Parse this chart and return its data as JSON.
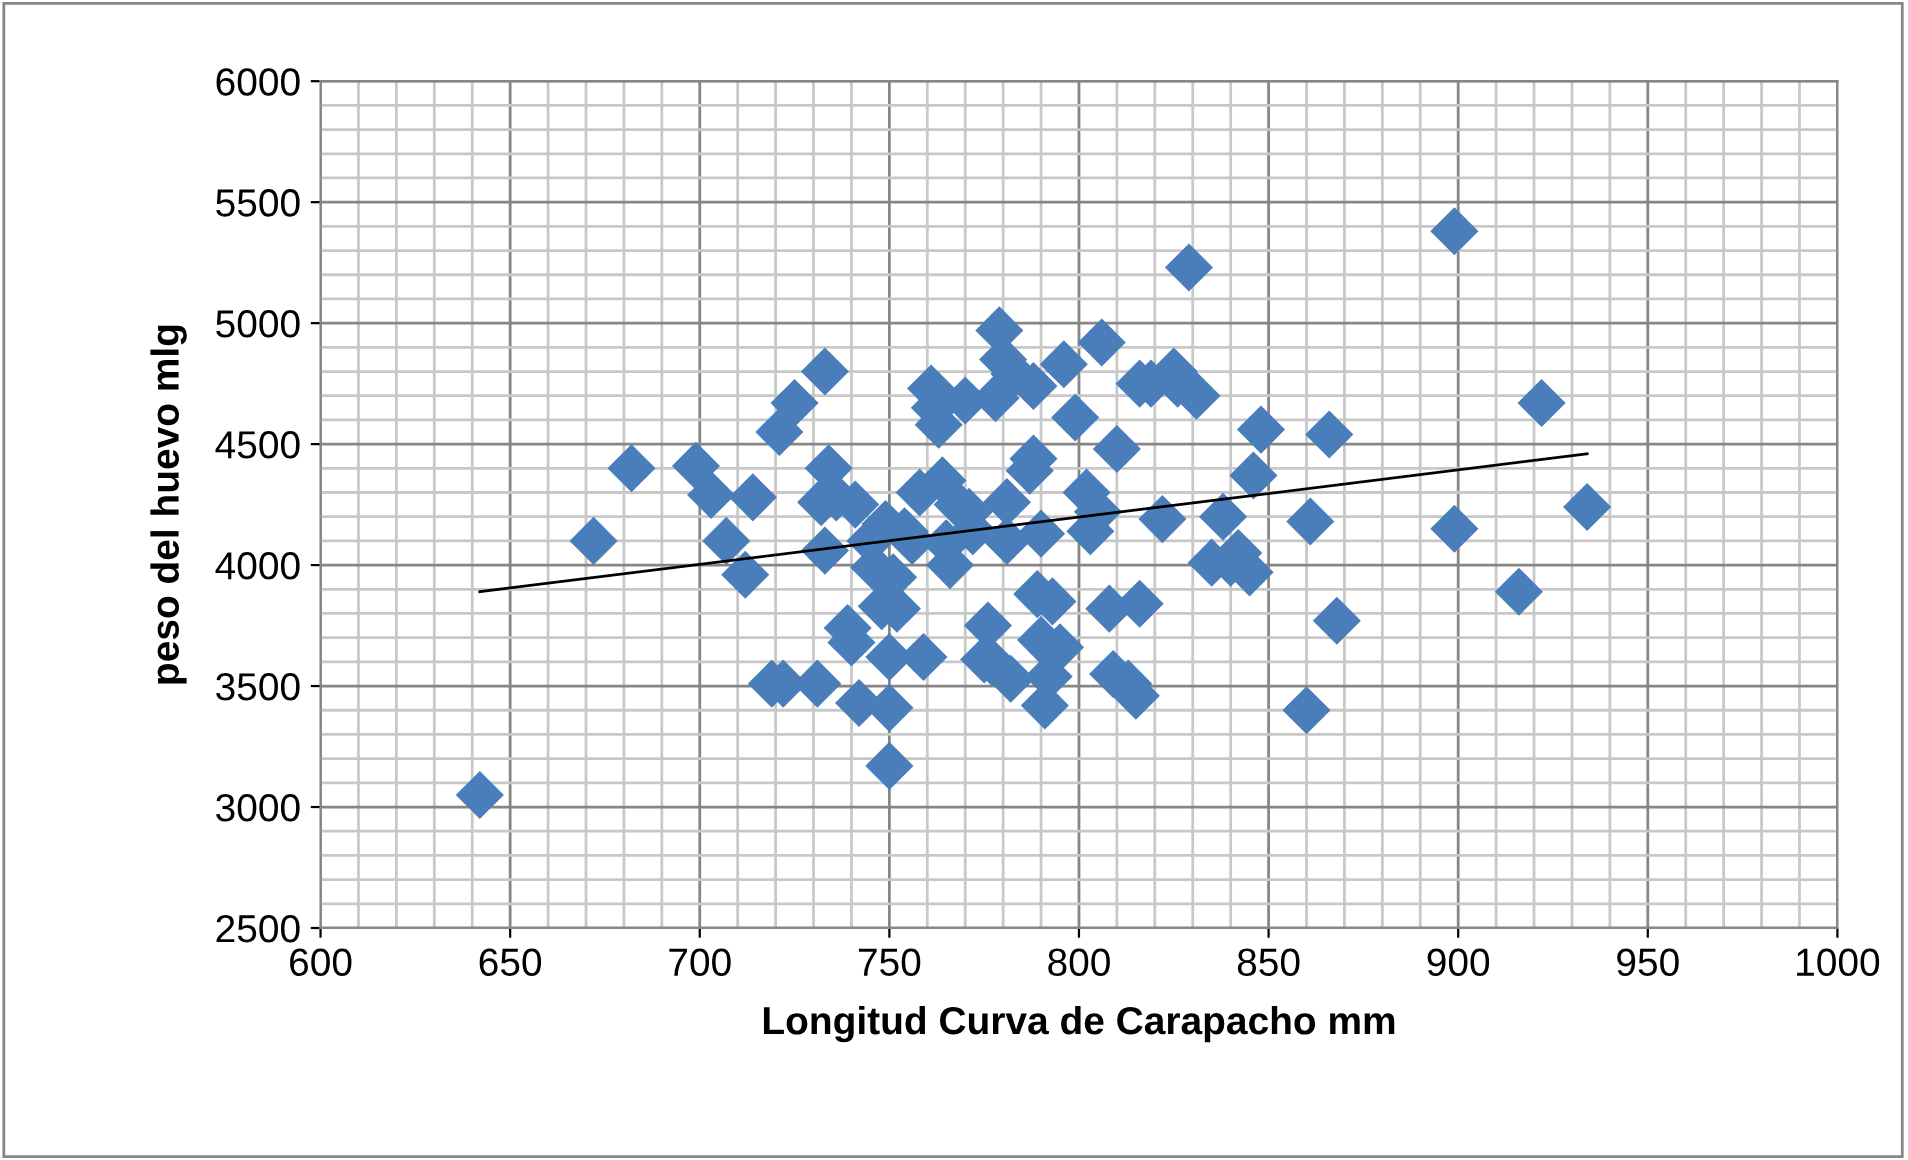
{
  "chart_data": {
    "type": "scatter",
    "xlabel": "Longitud Curva de Carapacho mm",
    "ylabel": "peso del huevo mlg",
    "xlim": [
      600,
      1000
    ],
    "ylim": [
      2500,
      6000
    ],
    "xticks": [
      600,
      650,
      700,
      750,
      800,
      850,
      900,
      950,
      1000
    ],
    "yticks": [
      2500,
      3000,
      3500,
      4000,
      4500,
      5000,
      5500,
      6000
    ],
    "grid": true,
    "marker": "diamond",
    "series": [
      {
        "color": "#4a7ebb",
        "x": [
          642,
          672,
          682,
          699,
          703,
          707,
          712,
          714,
          719,
          721,
          722,
          725,
          731,
          733,
          732,
          733,
          734,
          736,
          739,
          740,
          741,
          742,
          745,
          746,
          748,
          749,
          750,
          750,
          750,
          751,
          752,
          754,
          756,
          758,
          759,
          761,
          762,
          763,
          764,
          765,
          766,
          768,
          770,
          771,
          772,
          775,
          776,
          777,
          778,
          779,
          780,
          781,
          781,
          782,
          783,
          787,
          788,
          788,
          789,
          790,
          790,
          791,
          792,
          793,
          795,
          796,
          799,
          802,
          803,
          805,
          806,
          808,
          809,
          810,
          813,
          815,
          816,
          816,
          819,
          822,
          825,
          826,
          829,
          831,
          835,
          838,
          840,
          842,
          845,
          846,
          848,
          860,
          861,
          866,
          868,
          899,
          899,
          916,
          922,
          934
        ],
        "values": [
          3050,
          4100,
          4400,
          4410,
          4290,
          4100,
          3960,
          4280,
          3510,
          4550,
          3510,
          4670,
          3510,
          4800,
          4260,
          4060,
          4400,
          4280,
          3740,
          3680,
          4250,
          3430,
          4100,
          3990,
          3830,
          4170,
          3410,
          3170,
          3620,
          3950,
          3820,
          4140,
          4100,
          4300,
          3620,
          4730,
          4650,
          4580,
          4350,
          4090,
          4000,
          4250,
          4680,
          4220,
          4140,
          3610,
          3750,
          3600,
          4690,
          4970,
          4850,
          4260,
          4100,
          3530,
          4790,
          4390,
          4740,
          4440,
          3880,
          3690,
          4130,
          3420,
          3540,
          3850,
          3660,
          4830,
          4610,
          4300,
          4140,
          4220,
          4920,
          3820,
          3550,
          4480,
          3510,
          3460,
          4750,
          3840,
          4750,
          4190,
          4800,
          4750,
          5230,
          4700,
          4010,
          4200,
          4010,
          4050,
          3970,
          4370,
          4560,
          3400,
          4180,
          4540,
          3770,
          5380,
          4150,
          3890,
          4670,
          4240
        ]
      },
      {
        "type": "line",
        "color": "#000000",
        "marker": "none",
        "x": [
          642,
          934
        ],
        "values": [
          3890,
          4460
        ]
      }
    ]
  }
}
